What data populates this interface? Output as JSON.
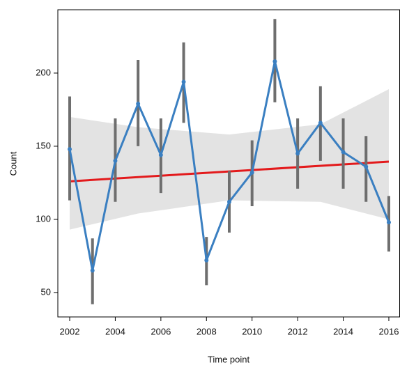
{
  "chart_data": {
    "type": "line",
    "x_label": "Time point",
    "y_label": "Count",
    "x": [
      2002,
      2003,
      2004,
      2005,
      2006,
      2007,
      2008,
      2009,
      2010,
      2011,
      2012,
      2013,
      2014,
      2015,
      2016
    ],
    "series": [
      {
        "name": "Count",
        "color": "#3a7fc1",
        "values": [
          148,
          65,
          140,
          179,
          144,
          194,
          72,
          112,
          132,
          208,
          145,
          166,
          146,
          136,
          98
        ],
        "lower": [
          113,
          42,
          112,
          150,
          118,
          166,
          55,
          91,
          109,
          180,
          121,
          140,
          121,
          112,
          78
        ],
        "upper": [
          184,
          87,
          169,
          209,
          169,
          221,
          88,
          133,
          154,
          237,
          169,
          191,
          169,
          157,
          116
        ]
      }
    ],
    "trend": {
      "color": "#e31a1c",
      "x": [
        2002,
        2016
      ],
      "values": [
        126,
        139.5
      ]
    },
    "band": {
      "color": "#e3e3e3",
      "x": [
        2002,
        2005,
        2009,
        2013,
        2016
      ],
      "upper": [
        170,
        163,
        158,
        165,
        189
      ],
      "lower": [
        93,
        104,
        113,
        112,
        100
      ]
    },
    "error_color": "#6e6e6e",
    "xlim": [
      2001.48,
      2016.49
    ],
    "ylim": [
      33.3,
      243.3
    ],
    "xticks": [
      2002,
      2004,
      2006,
      2008,
      2010,
      2012,
      2014,
      2016
    ],
    "yticks": [
      50,
      100,
      150,
      200
    ]
  }
}
